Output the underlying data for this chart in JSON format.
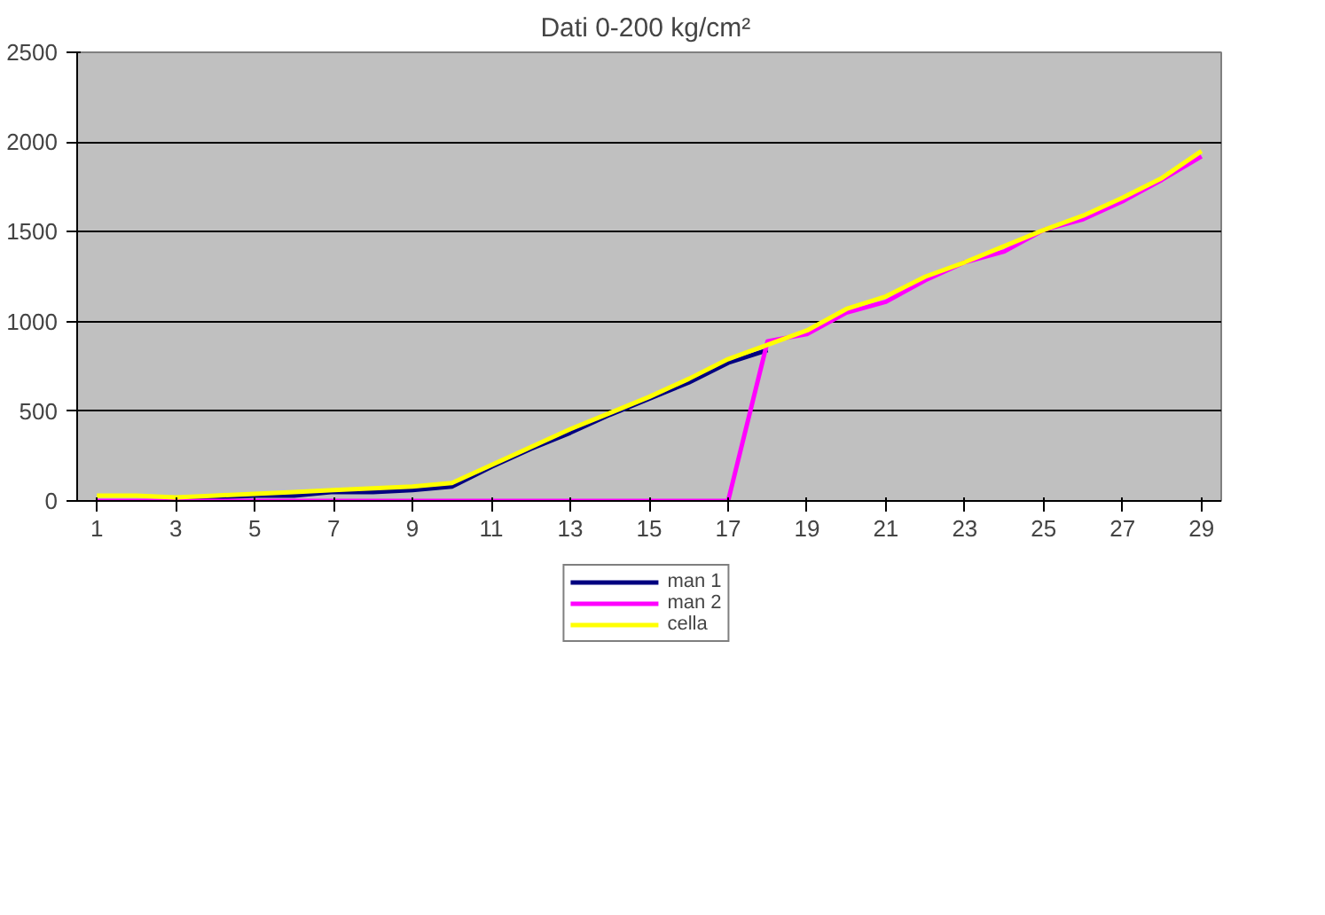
{
  "chart_data": {
    "type": "line",
    "title": "Dati 0-200  kg/cm²",
    "x": [
      1,
      2,
      3,
      4,
      5,
      6,
      7,
      8,
      9,
      10,
      11,
      12,
      13,
      14,
      15,
      16,
      17,
      18,
      19,
      20,
      21,
      22,
      23,
      24,
      25,
      26,
      27,
      28,
      29
    ],
    "xlim": [
      0.5,
      29.5
    ],
    "xticks": [
      1,
      3,
      5,
      7,
      9,
      11,
      13,
      15,
      17,
      19,
      21,
      23,
      25,
      27,
      29
    ],
    "ylim": [
      0,
      2500
    ],
    "yticks": [
      0,
      500,
      1000,
      1500,
      2000,
      2500
    ],
    "grid": "y",
    "legend": "bottom",
    "marker": "none",
    "line_style": "solid",
    "series": [
      {
        "name": "man 1",
        "color": "#000080",
        "values": [
          null,
          null,
          10,
          20,
          30,
          30,
          50,
          50,
          60,
          80,
          190,
          290,
          380,
          480,
          570,
          660,
          770,
          840,
          null,
          null,
          null,
          null,
          null,
          null,
          null,
          null,
          null,
          null,
          null
        ]
      },
      {
        "name": "man 2",
        "color": "#ff00ff",
        "values": [
          0,
          0,
          0,
          0,
          0,
          0,
          0,
          0,
          0,
          0,
          0,
          0,
          0,
          0,
          0,
          0,
          0,
          890,
          930,
          1050,
          1110,
          1230,
          1330,
          1390,
          1510,
          1570,
          1670,
          1790,
          1920
        ]
      },
      {
        "name": "cella",
        "color": "#ffff00",
        "values": [
          30,
          30,
          20,
          30,
          40,
          50,
          60,
          70,
          80,
          100,
          200,
          300,
          400,
          490,
          580,
          680,
          790,
          870,
          950,
          1070,
          1140,
          1250,
          1330,
          1420,
          1510,
          1590,
          1690,
          1800,
          1950
        ]
      }
    ]
  }
}
